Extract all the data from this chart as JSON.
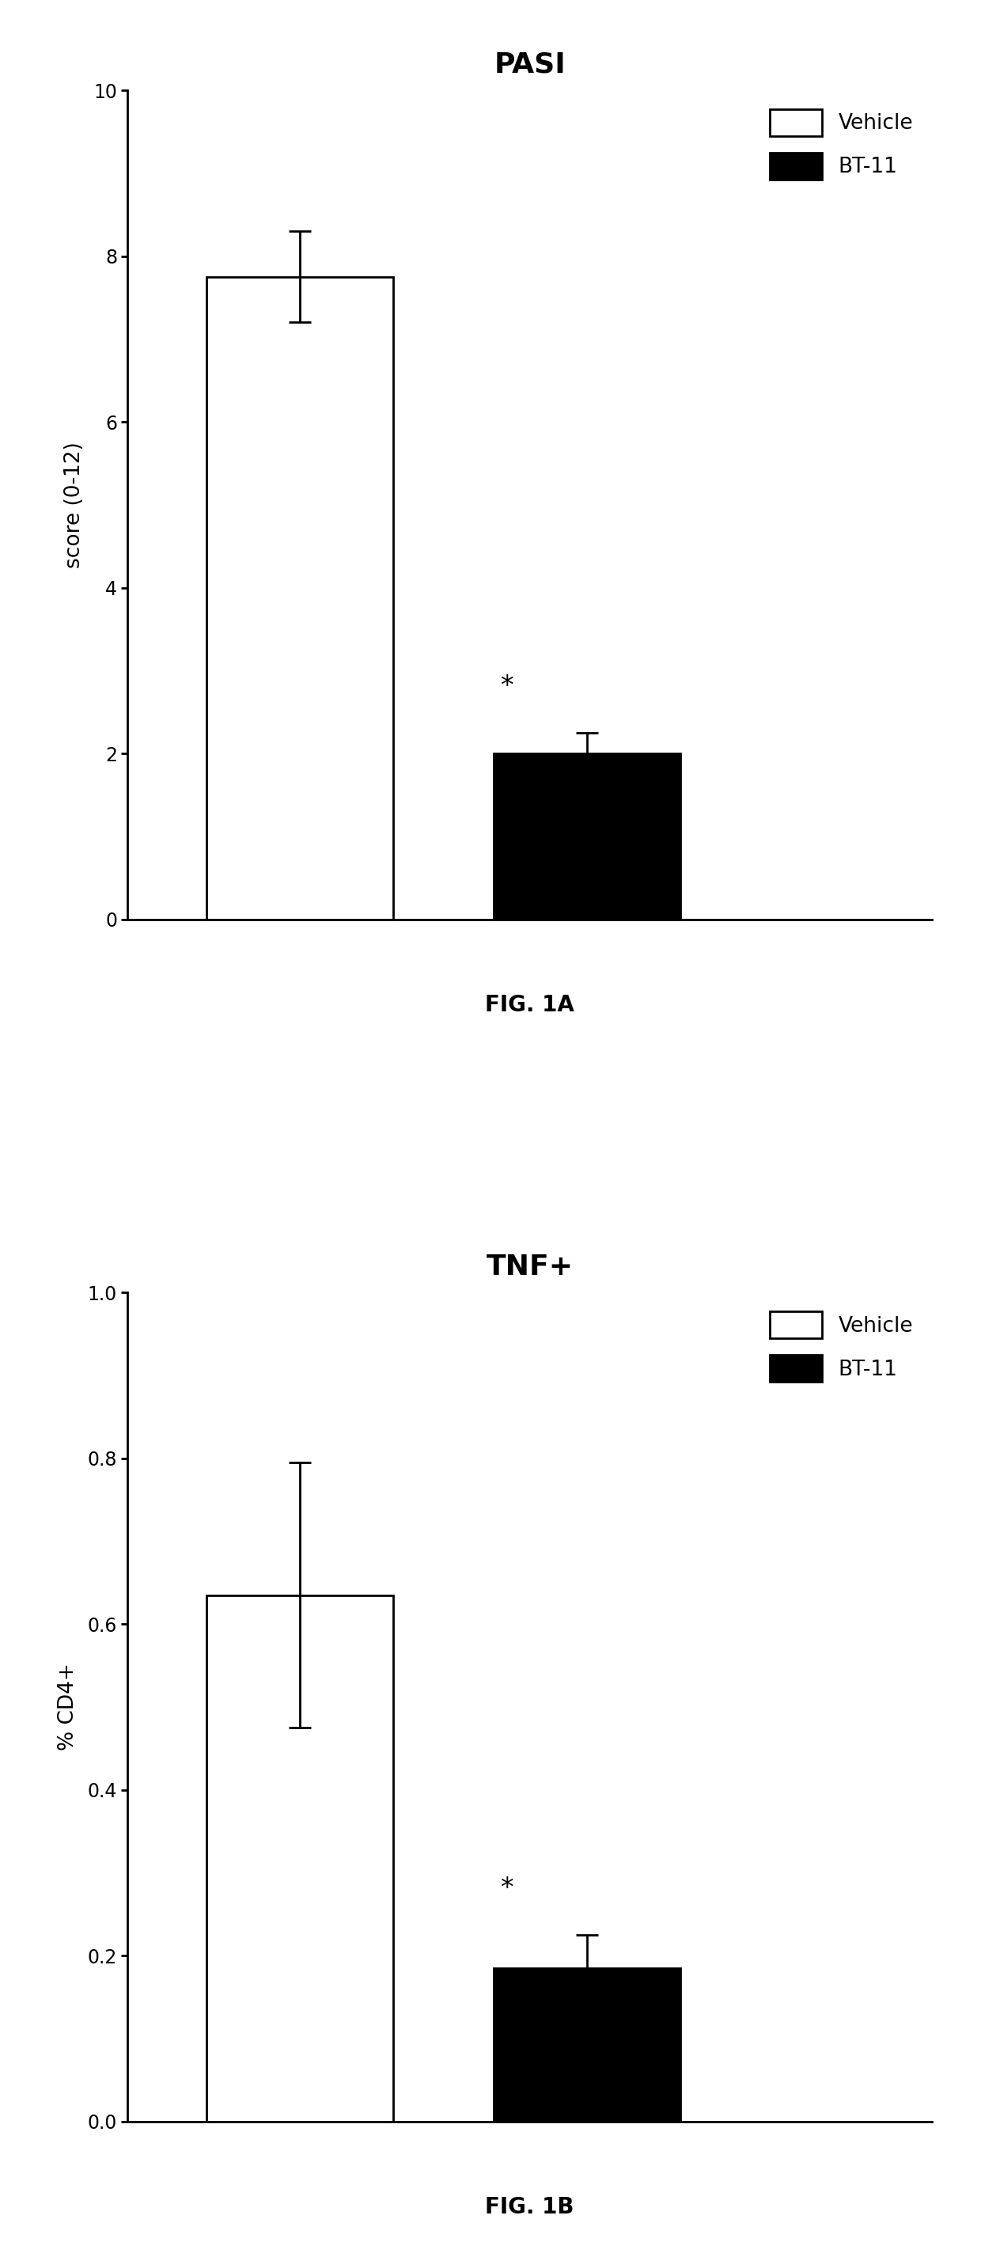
{
  "fig1a": {
    "title": "PASI",
    "ylabel": "score (0-12)",
    "categories": [
      "Vehicle",
      "BT-11"
    ],
    "values": [
      7.75,
      2.0
    ],
    "errors": [
      0.55,
      0.25
    ],
    "bar_colors": [
      "#ffffff",
      "#000000"
    ],
    "bar_edgecolors": [
      "#000000",
      "#000000"
    ],
    "ylim": [
      0,
      10
    ],
    "yticks": [
      0,
      2,
      4,
      6,
      8,
      10
    ],
    "ytick_labels": [
      "0",
      "2",
      "4",
      "6",
      "8",
      "10"
    ],
    "figlabel": "FIG. 1A",
    "significance": "*",
    "sig_bar_index": 1
  },
  "fig1b": {
    "title": "TNF+",
    "ylabel": "% CD4+",
    "categories": [
      "Vehicle",
      "BT-11"
    ],
    "values": [
      0.635,
      0.185
    ],
    "errors": [
      0.16,
      0.04
    ],
    "bar_colors": [
      "#ffffff",
      "#000000"
    ],
    "bar_edgecolors": [
      "#000000",
      "#000000"
    ],
    "ylim": [
      0,
      1.0
    ],
    "yticks": [
      0.0,
      0.2,
      0.4,
      0.6,
      0.8,
      1.0
    ],
    "ytick_labels": [
      "0.0",
      "0.2",
      "0.4",
      "0.6",
      "0.8",
      "1.0"
    ],
    "figlabel": "FIG. 1B",
    "significance": "*",
    "sig_bar_index": 1
  },
  "legend_labels": [
    "Vehicle",
    "BT-11"
  ],
  "legend_colors": [
    "#ffffff",
    "#000000"
  ],
  "bar_width": 0.65,
  "x_positions": [
    1,
    2
  ],
  "xlim": [
    0.4,
    3.2
  ],
  "title_fontsize": 26,
  "label_fontsize": 19,
  "tick_fontsize": 17,
  "legend_fontsize": 19,
  "figlabel_fontsize": 20,
  "sig_fontsize": 24
}
